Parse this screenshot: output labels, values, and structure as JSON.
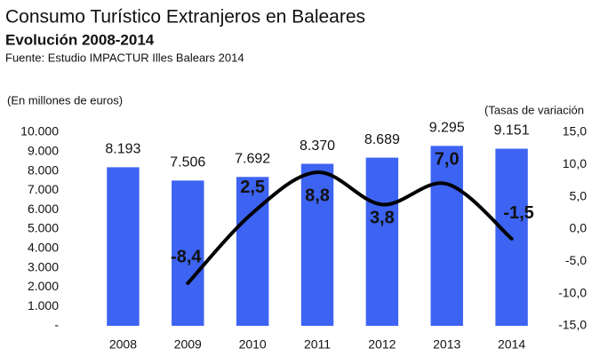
{
  "chart_data": {
    "type": "bar",
    "title": "Consumo Turístico Extranjeros en Baleares",
    "subtitle": "Evolución 2008-2014",
    "source": "Fuente: Estudio IMPACTUR Illes Balears 2014",
    "y_label": "(En millones de euros)",
    "y2_label": "(Tasas de variación",
    "categories": [
      "2008",
      "2009",
      "2010",
      "2011",
      "2012",
      "2013",
      "2014"
    ],
    "series": [
      {
        "name": "Consumo",
        "type": "bar",
        "color": "#3d63f2",
        "values": [
          8193,
          7506,
          7692,
          8370,
          8689,
          9295,
          9151
        ],
        "value_labels": [
          "8.193",
          "7.506",
          "7.692",
          "8.370",
          "8.689",
          "9.295",
          "9.151"
        ]
      },
      {
        "name": "Tasa de variación",
        "type": "line",
        "axis": "y2",
        "color": "#000000",
        "values": [
          null,
          -8.4,
          2.5,
          8.8,
          3.8,
          7.0,
          -1.5
        ],
        "value_labels": [
          null,
          "-8,4",
          "2,5",
          "8,8",
          "3,8",
          "7,0",
          "-1,5"
        ]
      }
    ],
    "ylim": [
      0,
      10000
    ],
    "yticks": [
      {
        "value": 0,
        "label": "-"
      },
      {
        "value": 1000,
        "label": "1.000"
      },
      {
        "value": 2000,
        "label": "2.000"
      },
      {
        "value": 3000,
        "label": "3.000"
      },
      {
        "value": 4000,
        "label": "4.000"
      },
      {
        "value": 5000,
        "label": "5.000"
      },
      {
        "value": 6000,
        "label": "6.000"
      },
      {
        "value": 7000,
        "label": "7.000"
      },
      {
        "value": 8000,
        "label": "8.000"
      },
      {
        "value": 9000,
        "label": "9.000"
      },
      {
        "value": 10000,
        "label": "10.000"
      }
    ],
    "y2lim": [
      -15,
      15
    ],
    "y2ticks": [
      {
        "value": -15,
        "label": "-15,0"
      },
      {
        "value": -10,
        "label": "-10,0"
      },
      {
        "value": -5,
        "label": "-5,0"
      },
      {
        "value": 0,
        "label": "0,0"
      },
      {
        "value": 5,
        "label": "5,0"
      },
      {
        "value": 10,
        "label": "10,0"
      },
      {
        "value": 15,
        "label": "15,0"
      }
    ]
  }
}
